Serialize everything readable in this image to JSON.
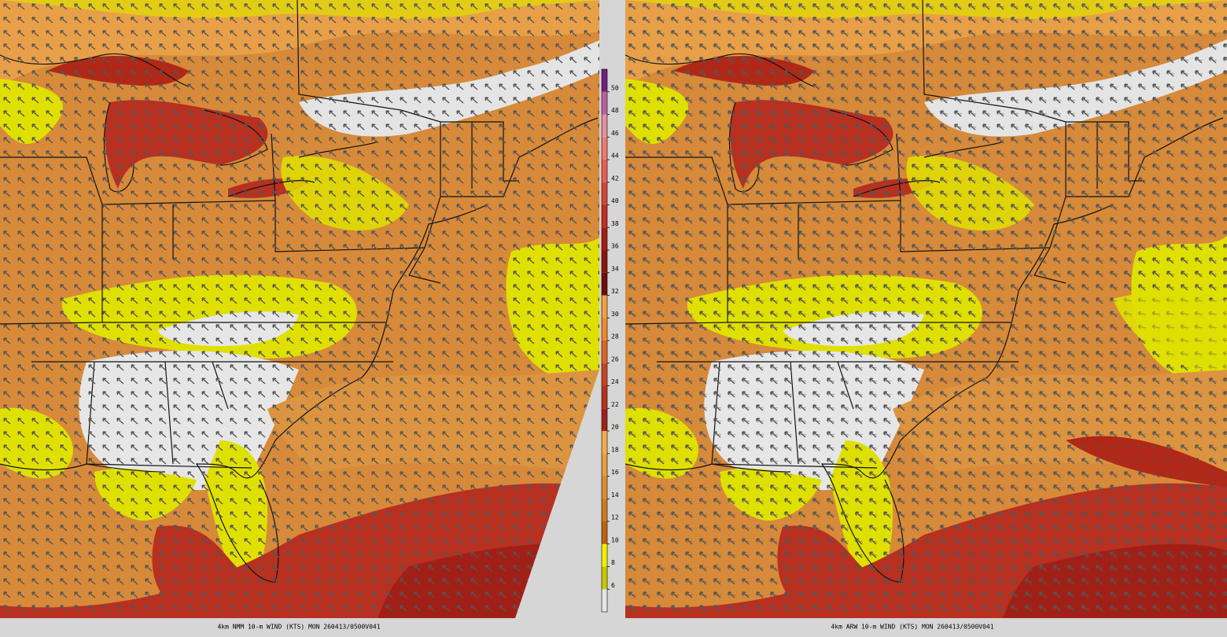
{
  "panels": [
    {
      "caption": "4km NMM 10-m WIND (KTS) MON 260413/0500V041"
    },
    {
      "caption": "4km ARW 10-m WIND (KTS) MON 260413/0500V041"
    }
  ],
  "colorbar": {
    "levels": [
      6,
      8,
      10,
      12,
      14,
      16,
      18,
      20,
      22,
      24,
      26,
      28,
      30,
      32,
      34,
      36,
      38,
      40,
      42,
      44,
      46,
      48,
      50
    ],
    "under_color": "#e6e6e6",
    "colors": [
      "#c8c800",
      "#f0f000",
      "#c06010",
      "#cc7a20",
      "#dc8c30",
      "#e89c40",
      "#f0aa50",
      "#a02018",
      "#b8301c",
      "#c84420",
      "#dc6424",
      "#f08830",
      "#f0a040",
      "#700c08",
      "#8c1410",
      "#a81c14",
      "#c42c20",
      "#d84438",
      "#e85c50",
      "#f07870",
      "#e090a0",
      "#b860a0",
      "#702080"
    ]
  }
}
